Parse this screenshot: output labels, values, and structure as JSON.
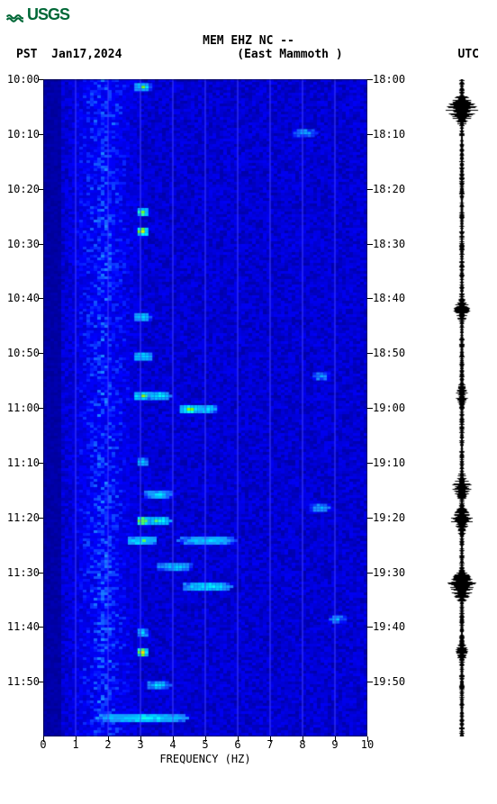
{
  "logo": {
    "text": "USGS",
    "color": "#006837"
  },
  "header": {
    "title": "MEM EHZ NC --",
    "subtitle": "(East Mammoth )",
    "left_tz": "PST",
    "date": "Jan17,2024",
    "right_tz": "UTC"
  },
  "spectrogram": {
    "type": "spectrogram",
    "x_axis": {
      "label": "FREQUENCY (HZ)",
      "min": 0,
      "max": 10,
      "ticks": [
        0,
        1,
        2,
        3,
        4,
        5,
        6,
        7,
        8,
        9,
        10
      ]
    },
    "y_left": {
      "ticks": [
        "10:00",
        "10:10",
        "10:20",
        "10:30",
        "10:40",
        "10:50",
        "11:00",
        "11:10",
        "11:20",
        "11:30",
        "11:40",
        "11:50"
      ]
    },
    "y_right": {
      "ticks": [
        "18:00",
        "18:10",
        "18:20",
        "18:30",
        "18:40",
        "18:50",
        "19:00",
        "19:10",
        "19:20",
        "19:30",
        "19:40",
        "19:50"
      ]
    },
    "background_color": "#0000a0",
    "grid_color": "#4040ff",
    "colormap": [
      "#00008b",
      "#0000cd",
      "#0000ff",
      "#1e90ff",
      "#00bfff",
      "#00ffff",
      "#7fff00",
      "#ffff00",
      "#ffa500",
      "#ff4500"
    ],
    "hotspots": [
      {
        "t": 0.01,
        "f": 0.3,
        "intensity": 0.7,
        "w": 0.03
      },
      {
        "t": 0.08,
        "f": 0.8,
        "intensity": 0.5,
        "w": 0.04
      },
      {
        "t": 0.2,
        "f": 0.3,
        "intensity": 0.8,
        "w": 0.02
      },
      {
        "t": 0.23,
        "f": 0.3,
        "intensity": 0.9,
        "w": 0.02
      },
      {
        "t": 0.36,
        "f": 0.3,
        "intensity": 0.6,
        "w": 0.03
      },
      {
        "t": 0.42,
        "f": 0.3,
        "intensity": 0.7,
        "w": 0.03
      },
      {
        "t": 0.48,
        "f": 0.3,
        "intensity": 0.8,
        "w": 0.03
      },
      {
        "t": 0.48,
        "f": 0.35,
        "intensity": 0.7,
        "w": 0.04
      },
      {
        "t": 0.5,
        "f": 0.45,
        "intensity": 0.8,
        "w": 0.04
      },
      {
        "t": 0.5,
        "f": 0.5,
        "intensity": 0.7,
        "w": 0.03
      },
      {
        "t": 0.58,
        "f": 0.3,
        "intensity": 0.6,
        "w": 0.02
      },
      {
        "t": 0.63,
        "f": 0.35,
        "intensity": 0.6,
        "w": 0.05
      },
      {
        "t": 0.67,
        "f": 0.3,
        "intensity": 0.95,
        "w": 0.02
      },
      {
        "t": 0.67,
        "f": 0.35,
        "intensity": 0.8,
        "w": 0.04
      },
      {
        "t": 0.7,
        "f": 0.3,
        "intensity": 0.7,
        "w": 0.05
      },
      {
        "t": 0.7,
        "f": 0.5,
        "intensity": 0.6,
        "w": 0.1
      },
      {
        "t": 0.74,
        "f": 0.4,
        "intensity": 0.6,
        "w": 0.06
      },
      {
        "t": 0.77,
        "f": 0.5,
        "intensity": 0.7,
        "w": 0.08
      },
      {
        "t": 0.84,
        "f": 0.3,
        "intensity": 0.6,
        "w": 0.02
      },
      {
        "t": 0.87,
        "f": 0.3,
        "intensity": 0.9,
        "w": 0.02
      },
      {
        "t": 0.92,
        "f": 0.35,
        "intensity": 0.6,
        "w": 0.04
      },
      {
        "t": 0.97,
        "f": 0.3,
        "intensity": 0.7,
        "w": 0.15
      },
      {
        "t": 0.45,
        "f": 0.85,
        "intensity": 0.5,
        "w": 0.03
      },
      {
        "t": 0.65,
        "f": 0.85,
        "intensity": 0.5,
        "w": 0.04
      },
      {
        "t": 0.82,
        "f": 0.9,
        "intensity": 0.5,
        "w": 0.03
      }
    ],
    "noise_column_center": 0.18,
    "noise_column_width": 0.12
  },
  "waveform": {
    "center_color": "#000000",
    "events": [
      {
        "t": 0.045,
        "amp": 1.0
      },
      {
        "t": 0.35,
        "amp": 0.5
      },
      {
        "t": 0.48,
        "amp": 0.4
      },
      {
        "t": 0.62,
        "amp": 0.6
      },
      {
        "t": 0.67,
        "amp": 0.7
      },
      {
        "t": 0.77,
        "amp": 1.0
      },
      {
        "t": 0.87,
        "amp": 0.4
      }
    ],
    "base_noise": 0.15
  }
}
